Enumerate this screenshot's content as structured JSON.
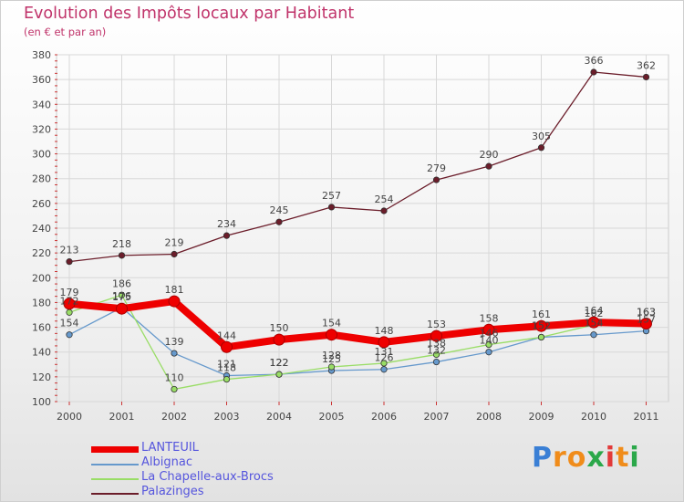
{
  "header": {
    "title": "Evolution des Impôts locaux par Habitant",
    "subtitle": "(en € et par an)"
  },
  "chart_data": {
    "type": "line",
    "title": "Evolution des Impôts locaux par Habitant",
    "subtitle": "(en € et par an)",
    "xlabel": "",
    "ylabel": "",
    "categories": [
      "2000",
      "2001",
      "2002",
      "2003",
      "2004",
      "2005",
      "2006",
      "2007",
      "2008",
      "2009",
      "2010",
      "2011"
    ],
    "ylim": [
      100,
      380
    ],
    "yticks": [
      100,
      120,
      140,
      160,
      180,
      200,
      220,
      240,
      260,
      280,
      300,
      320,
      340,
      360,
      380
    ],
    "grid": true,
    "legend_position": "bottom-left",
    "series": [
      {
        "name": "LANTEUIL",
        "color": "#ee0000",
        "values": [
          179,
          175,
          181,
          144,
          150,
          154,
          148,
          153,
          158,
          161,
          164,
          163
        ]
      },
      {
        "name": "Albignac",
        "color": "#6699cc",
        "values": [
          154,
          176,
          139,
          121,
          122,
          125,
          126,
          132,
          140,
          152,
          154,
          157
        ]
      },
      {
        "name": "La Chapelle-aux-Brocs",
        "color": "#99dd66",
        "values": [
          172,
          186,
          110,
          118,
          122,
          128,
          131,
          138,
          146,
          152,
          162,
          163
        ]
      },
      {
        "name": "Palazinges",
        "color": "#6b1d2a",
        "values": [
          213,
          218,
          219,
          234,
          245,
          257,
          254,
          279,
          290,
          305,
          366,
          362
        ]
      }
    ]
  },
  "logo": {
    "letters": [
      "P",
      "r",
      "o",
      "x",
      "i",
      "t",
      "i"
    ],
    "colors": [
      "#3a7fd5",
      "#f08c1a",
      "#f08c1a",
      "#2ba84a",
      "#e23a3a",
      "#f08c1a",
      "#2ba84a"
    ]
  }
}
